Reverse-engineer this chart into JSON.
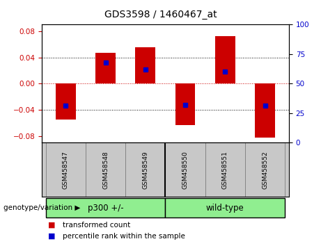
{
  "title": "GDS3598 / 1460467_at",
  "samples": [
    "GSM458547",
    "GSM458548",
    "GSM458549",
    "GSM458550",
    "GSM458551",
    "GSM458552"
  ],
  "bar_values": [
    -0.055,
    0.047,
    0.055,
    -0.063,
    0.072,
    -0.082
  ],
  "percentile_values": [
    -0.034,
    0.032,
    0.022,
    -0.032,
    0.018,
    -0.033
  ],
  "bar_color": "#cc0000",
  "percentile_color": "#0000cc",
  "ylim": [
    -0.09,
    0.09
  ],
  "yticks_left": [
    -0.08,
    -0.04,
    0,
    0.04,
    0.08
  ],
  "yticks_right": [
    0,
    25,
    50,
    75,
    100
  ],
  "groups": [
    {
      "label": "p300 +/-",
      "span": [
        0,
        2
      ],
      "color": "#90ee90"
    },
    {
      "label": "wild-type",
      "span": [
        3,
        5
      ],
      "color": "#90ee90"
    }
  ],
  "group_label": "genotype/variation",
  "legend_items": [
    {
      "label": "transformed count",
      "color": "#cc0000"
    },
    {
      "label": "percentile rank within the sample",
      "color": "#0000cc"
    }
  ],
  "bar_width": 0.5,
  "background_color": "#ffffff",
  "plot_bg_color": "#ffffff",
  "zero_line_color": "#cc0000",
  "title_fontsize": 10
}
